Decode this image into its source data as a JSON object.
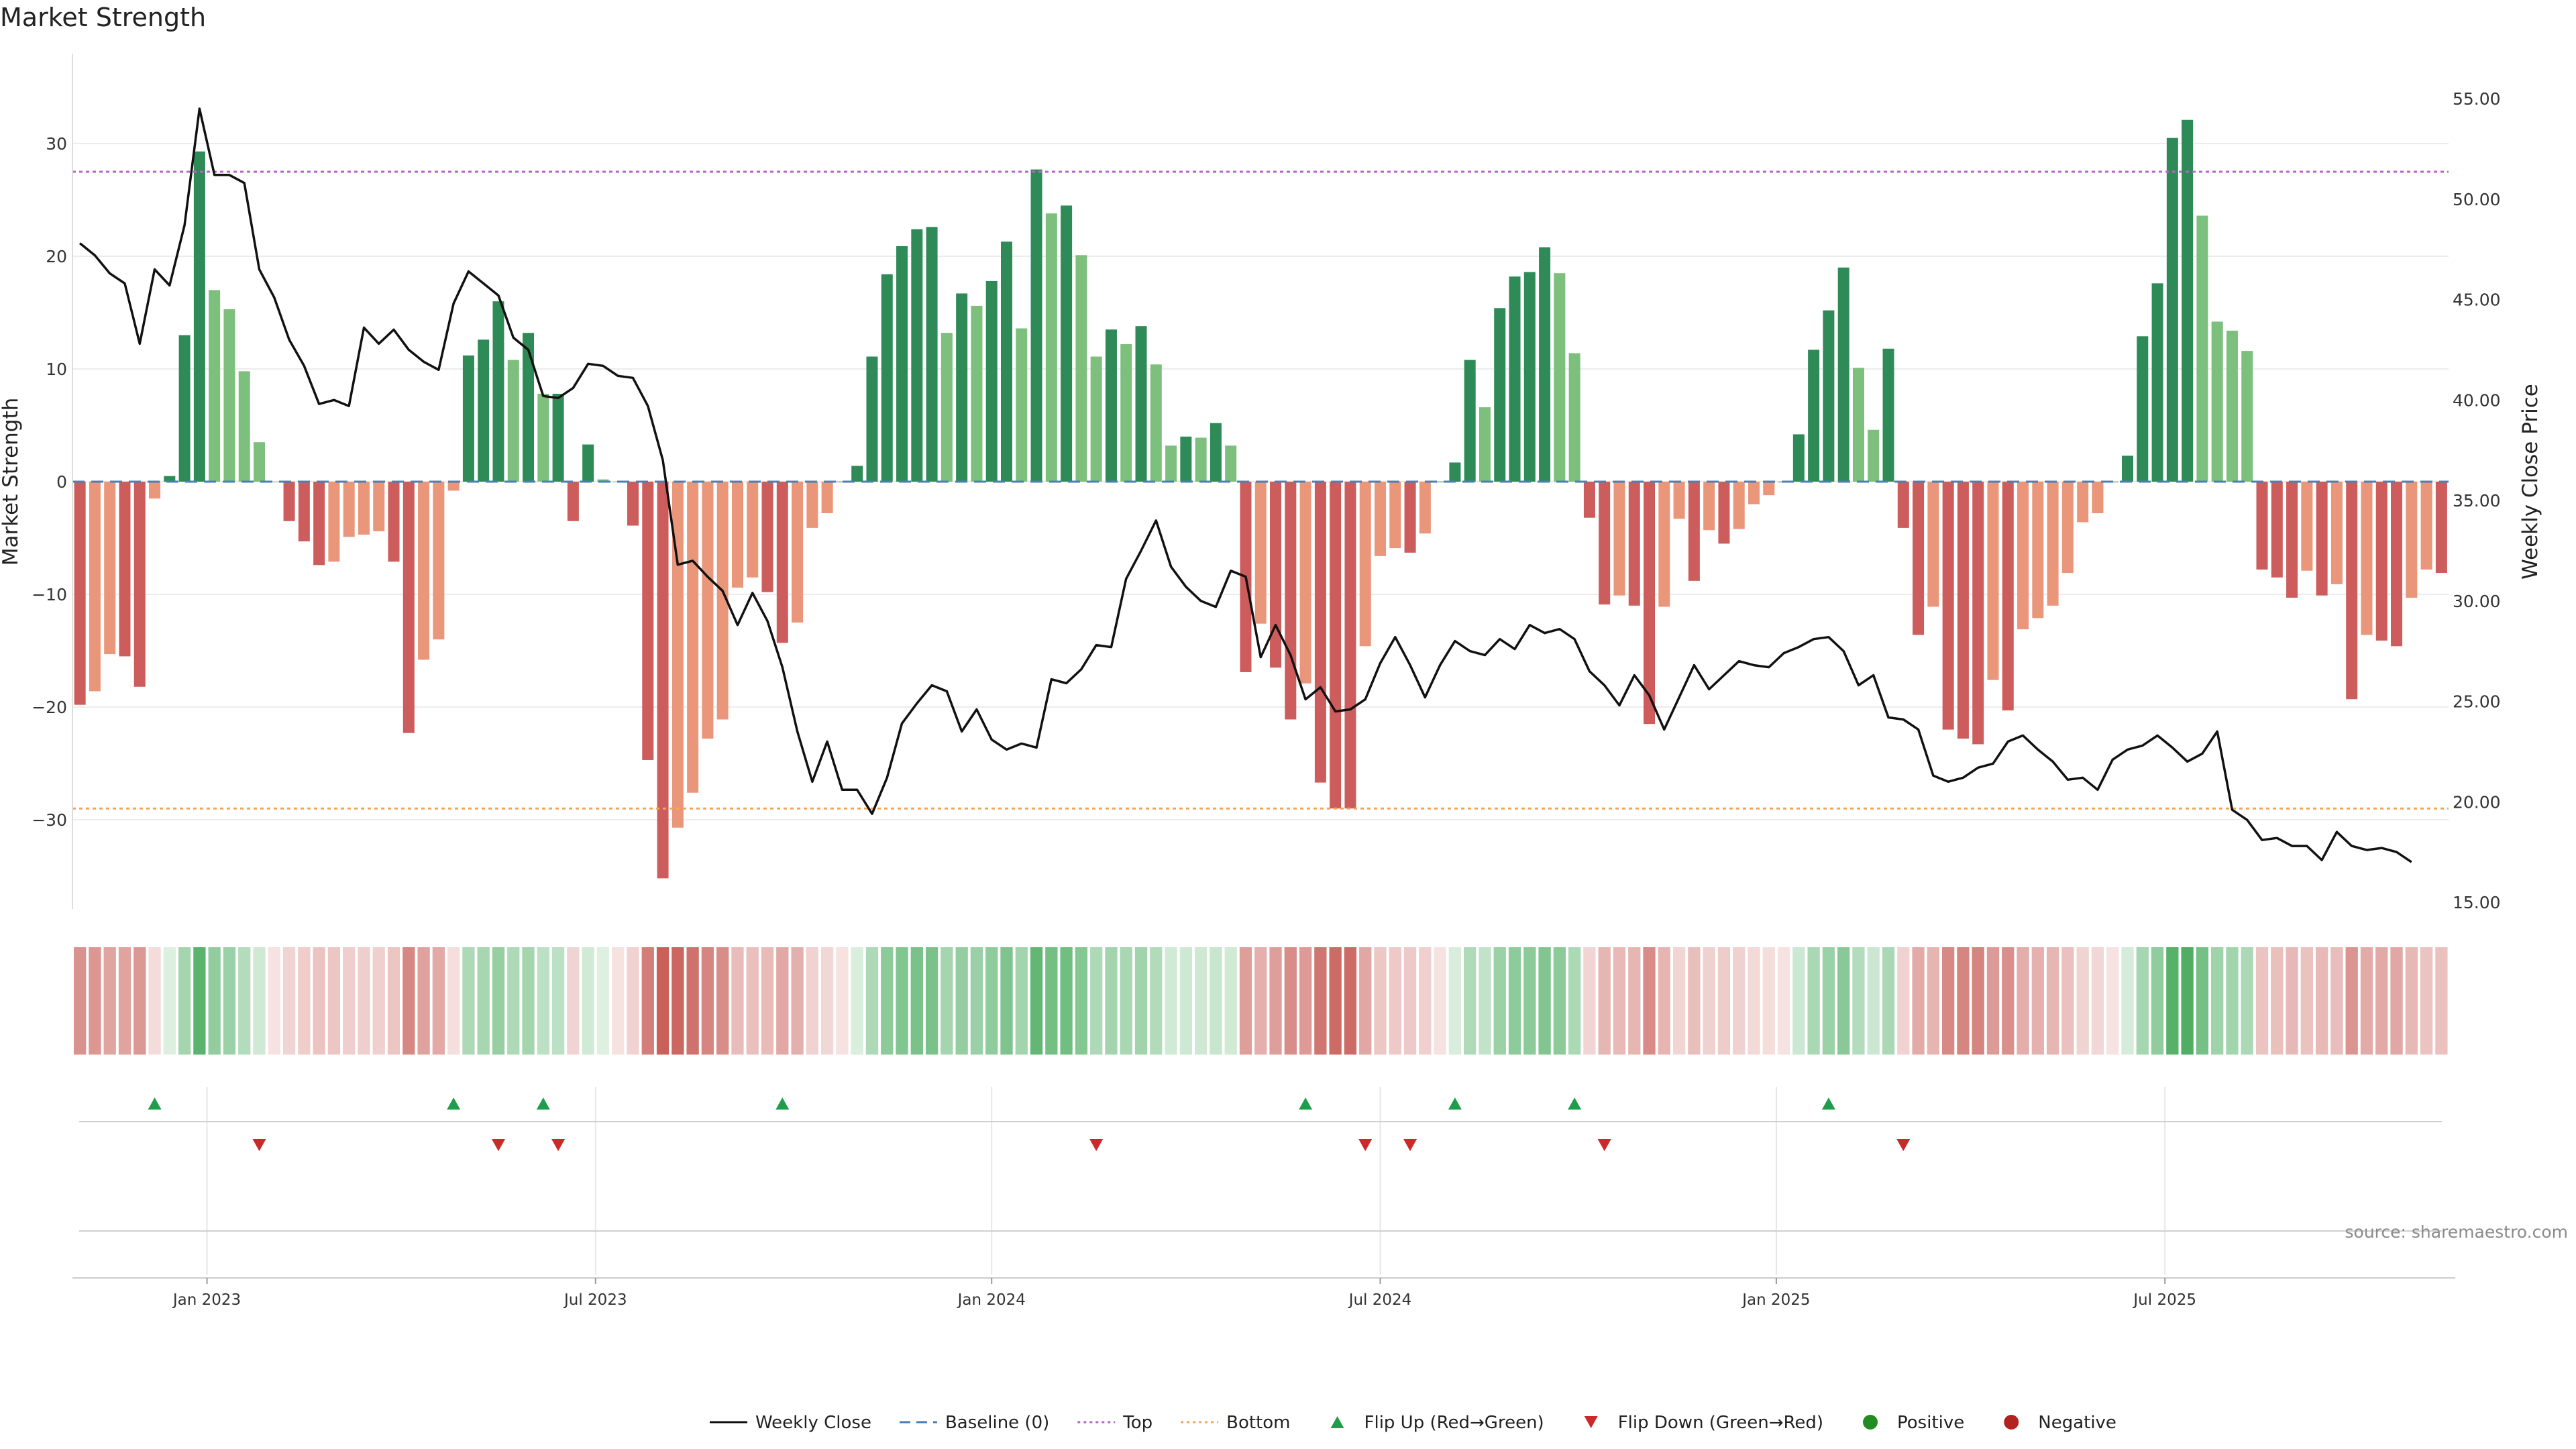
{
  "header": {
    "title": "Market Strength"
  },
  "source_note": "source: sharemaestro.com",
  "colors": {
    "strong_green": "#2e8b57",
    "light_green": "#7dbf7d",
    "strong_red": "#cd5c5c",
    "light_red": "#e9967a",
    "close_line": "#111111",
    "baseline": "#4a7fb5",
    "top": "#b565c9",
    "bottom": "#f2a65a",
    "flip_up": "#1e9e4a",
    "flip_down": "#cc2a2a",
    "positive": "#228b22",
    "negative": "#b22222"
  },
  "chart_data": {
    "type": "bar",
    "title": "Market Strength",
    "ylabel": "Market Strength",
    "y2label": "Weekly Close Price",
    "ylim": [
      -38,
      38
    ],
    "y2lim": [
      14.6,
      56.2
    ],
    "yticks": [
      30,
      20,
      10,
      0,
      -10,
      -20,
      -30
    ],
    "y2ticks": [
      55,
      50,
      45,
      40,
      35,
      30,
      25,
      20,
      15
    ],
    "ytick_labels": [
      "30",
      "20",
      "10",
      "0",
      "−10",
      "−20",
      "−30"
    ],
    "y2tick_labels": [
      "55.00",
      "50.00",
      "45.00",
      "40.00",
      "35.00",
      "30.00",
      "25.00",
      "20.00",
      "15.00"
    ],
    "xticks": [
      {
        "label": "Jan 2023",
        "week": 9
      },
      {
        "label": "Jul 2023",
        "week": 35
      },
      {
        "label": "Jan 2024",
        "week": 61.5
      },
      {
        "label": "Jul 2024",
        "week": 87.5
      },
      {
        "label": "Jan 2025",
        "week": 114
      },
      {
        "label": "Jul 2025",
        "week": 140
      }
    ],
    "top_line": 27.5,
    "bottom_line": -29,
    "baseline": 0,
    "strength": [
      -19.8,
      -18.6,
      -15.3,
      -15.5,
      -18.2,
      -1.5,
      0.5,
      13,
      29.3,
      17,
      15.3,
      9.8,
      3.5,
      0,
      -3.5,
      -5.3,
      -7.4,
      -7.1,
      -4.9,
      -4.7,
      -4.4,
      -7.1,
      -22.3,
      -15.8,
      -14,
      -0.8,
      11.2,
      12.6,
      16,
      10.8,
      13.2,
      7.8,
      7.8,
      -3.5,
      3.3,
      0.2,
      0,
      -3.9,
      -24.7,
      -35.2,
      -30.7,
      -27.6,
      -22.8,
      -21.1,
      -9.4,
      -8.5,
      -9.8,
      -14.3,
      -12.5,
      -4.1,
      -2.8,
      0,
      1.4,
      11.1,
      18.4,
      20.9,
      22.4,
      22.6,
      13.2,
      16.7,
      15.6,
      17.8,
      21.3,
      13.6,
      27.7,
      23.8,
      24.5,
      20.1,
      11.1,
      13.5,
      12.2,
      13.8,
      10.4,
      3.2,
      4,
      3.9,
      5.2,
      3.2,
      -16.9,
      -12.6,
      -16.5,
      -21.1,
      -17.9,
      -26.7,
      -29,
      -29,
      -14.6,
      -6.6,
      -5.9,
      -6.3,
      -4.6,
      0,
      1.7,
      10.8,
      6.6,
      15.4,
      18.2,
      18.6,
      20.8,
      18.5,
      11.4,
      -3.2,
      -10.9,
      -10.1,
      -11,
      -21.5,
      -11.1,
      -3.3,
      -8.8,
      -4.3,
      -5.5,
      -4.2,
      -2,
      -1.2,
      0,
      4.2,
      11.7,
      15.2,
      19,
      10.1,
      4.6,
      11.8,
      -4.1,
      -13.6,
      -11.1,
      -22,
      -22.8,
      -23.3,
      -17.6,
      -20.3,
      -13.1,
      -12.1,
      -11,
      -8.1,
      -3.6,
      -2.8,
      0,
      2.3,
      12.9,
      17.6,
      30.5,
      32.1,
      23.6,
      14.2,
      13.4,
      11.6,
      -7.8,
      -8.5,
      -10.3,
      -7.9,
      -10.1,
      -9.1,
      -19.3,
      -13.6,
      -14.1,
      -14.6,
      -10.3,
      -7.8,
      -8.1
    ],
    "close": [
      47.8,
      47.2,
      46.3,
      45.8,
      42.8,
      46.5,
      45.7,
      48.7,
      54.5,
      51.2,
      51.2,
      50.8,
      46.5,
      45.1,
      43,
      41.7,
      39.8,
      40,
      39.7,
      43.6,
      42.8,
      43.5,
      42.5,
      41.9,
      41.5,
      44.8,
      46.4,
      45.8,
      45.2,
      43.1,
      42.5,
      40.2,
      40.1,
      40.6,
      41.8,
      41.7,
      41.2,
      41.1,
      39.7,
      37,
      31.8,
      32,
      31.2,
      30.5,
      28.8,
      30.4,
      29,
      26.7,
      23.5,
      21,
      23,
      20.6,
      20.6,
      19.4,
      21.2,
      23.9,
      24.9,
      25.8,
      25.5,
      23.5,
      24.6,
      23.1,
      22.6,
      22.9,
      22.7,
      26.1,
      25.9,
      26.6,
      27.8,
      27.7,
      31.1,
      32.5,
      34,
      31.7,
      30.7,
      30,
      29.7,
      31.5,
      31.2,
      27.2,
      28.8,
      27.3,
      25.1,
      25.7,
      24.5,
      24.6,
      25.1,
      26.9,
      28.2,
      26.8,
      25.2,
      26.8,
      28,
      27.5,
      27.3,
      28.1,
      27.6,
      28.8,
      28.4,
      28.6,
      28.1,
      26.5,
      25.8,
      24.8,
      26.3,
      25.3,
      23.6,
      25.2,
      26.8,
      25.6,
      26.3,
      27,
      26.8,
      26.7,
      27.4,
      27.7,
      28.1,
      28.2,
      27.5,
      25.8,
      26.3,
      24.2,
      24.1,
      23.6,
      21.3,
      21,
      21.2,
      21.7,
      21.9,
      23,
      23.3,
      22.6,
      22,
      21.1,
      21.2,
      20.6,
      22.1,
      22.6,
      22.8,
      23.3,
      22.7,
      22,
      22.4,
      23.5,
      19.6,
      19.1,
      18.1,
      18.2,
      17.8,
      17.8,
      17.1,
      18.5,
      17.8,
      17.6,
      17.7,
      17.5,
      17
    ],
    "heat_strip": "weekly strength intensity",
    "flip_up_weeks": [
      5,
      25,
      31,
      47,
      82,
      92,
      100,
      117
    ],
    "flip_down_weeks": [
      12,
      28,
      32,
      68,
      86,
      89,
      102,
      122
    ],
    "legend": [
      {
        "label": "Weekly Close",
        "kind": "line-solid",
        "color": "#111111"
      },
      {
        "label": "Baseline (0)",
        "kind": "line-dash",
        "color": "#4a7fb5"
      },
      {
        "label": "Top",
        "kind": "line-dot",
        "color": "#b565c9"
      },
      {
        "label": "Bottom",
        "kind": "line-dot",
        "color": "#f2a65a"
      },
      {
        "label": "Flip Up (Red→Green)",
        "kind": "tri-up",
        "color": "#1e9e4a"
      },
      {
        "label": "Flip Down (Green→Red)",
        "kind": "tri-down",
        "color": "#cc2a2a"
      },
      {
        "label": "Positive",
        "kind": "dot",
        "color": "#228b22"
      },
      {
        "label": "Negative",
        "kind": "dot",
        "color": "#b22222"
      }
    ]
  }
}
